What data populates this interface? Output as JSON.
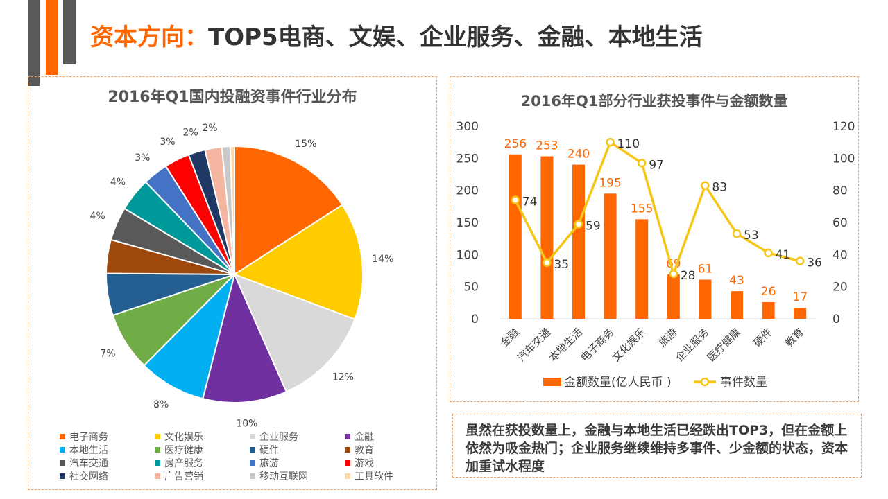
{
  "header": {
    "title_accent": "资本方向：",
    "title_rest": "TOP5电商、文娱、企业服务、金融、本地生活"
  },
  "colors": {
    "accent": "#ff6600",
    "line": "#f5c518",
    "bar": "#ff6600",
    "deco_gray": "#595959"
  },
  "chart_data": [
    {
      "type": "pie",
      "title": "2016年Q1国内投融资事件行业分布",
      "labels": [
        "电子商务",
        "文化娱乐",
        "企业服务",
        "金融",
        "本地生活",
        "医疗健康",
        "硬件",
        "教育",
        "汽车交通",
        "房产服务",
        "旅游",
        "游戏",
        "社交网络",
        "广告营销",
        "移动互联网",
        "工具软件"
      ],
      "values": [
        15,
        14,
        12,
        10,
        8,
        7,
        5,
        4,
        4,
        4,
        3,
        3,
        2,
        2,
        1,
        0.5
      ],
      "data_labels": [
        "15%",
        "14%",
        "12%",
        "10%",
        "8%",
        "7%",
        "",
        "",
        "4%",
        "4%",
        "3%",
        "3%",
        "2%",
        "2%",
        "",
        ""
      ],
      "colors": [
        "#ff6600",
        "#ffcc00",
        "#d9d9d9",
        "#7030a0",
        "#00b0f0",
        "#70ad47",
        "#255e91",
        "#9e480e",
        "#595959",
        "#009999",
        "#4472c4",
        "#ff0000",
        "#1f3864",
        "#f4b6a0",
        "#c9c9c9",
        "#ffd8a8"
      ],
      "legend_position": "bottom"
    },
    {
      "type": "bar+line",
      "title": "2016年Q1部分行业获投事件与金额数量",
      "categories": [
        "金融",
        "汽车交通",
        "本地生活",
        "电子商务",
        "文化娱乐",
        "旅游",
        "企业服务",
        "医疗健康",
        "硬件",
        "教育"
      ],
      "series": [
        {
          "name": "金额数量(亿人民币 )",
          "type": "bar",
          "axis": "left",
          "values": [
            256,
            253,
            240,
            195,
            155,
            69,
            61,
            43,
            26,
            17
          ]
        },
        {
          "name": "事件数量",
          "type": "line",
          "axis": "right",
          "values": [
            74,
            35,
            59,
            110,
            97,
            28,
            83,
            53,
            41,
            36
          ]
        }
      ],
      "ylim_left": [
        0,
        300
      ],
      "yticks_left": [
        0,
        50,
        100,
        150,
        200,
        250,
        300
      ],
      "ylim_right": [
        0,
        120
      ],
      "yticks_right": [
        0,
        20,
        40,
        60,
        80,
        100,
        120
      ],
      "legend_position": "bottom"
    }
  ],
  "note": {
    "text": "虽然在获投数量上，金融与本地生活已经跌出TOP3，但在金额上依然为吸金热门；企业服务继续维持多事件、少金额的状态，资本加重试水程度"
  }
}
